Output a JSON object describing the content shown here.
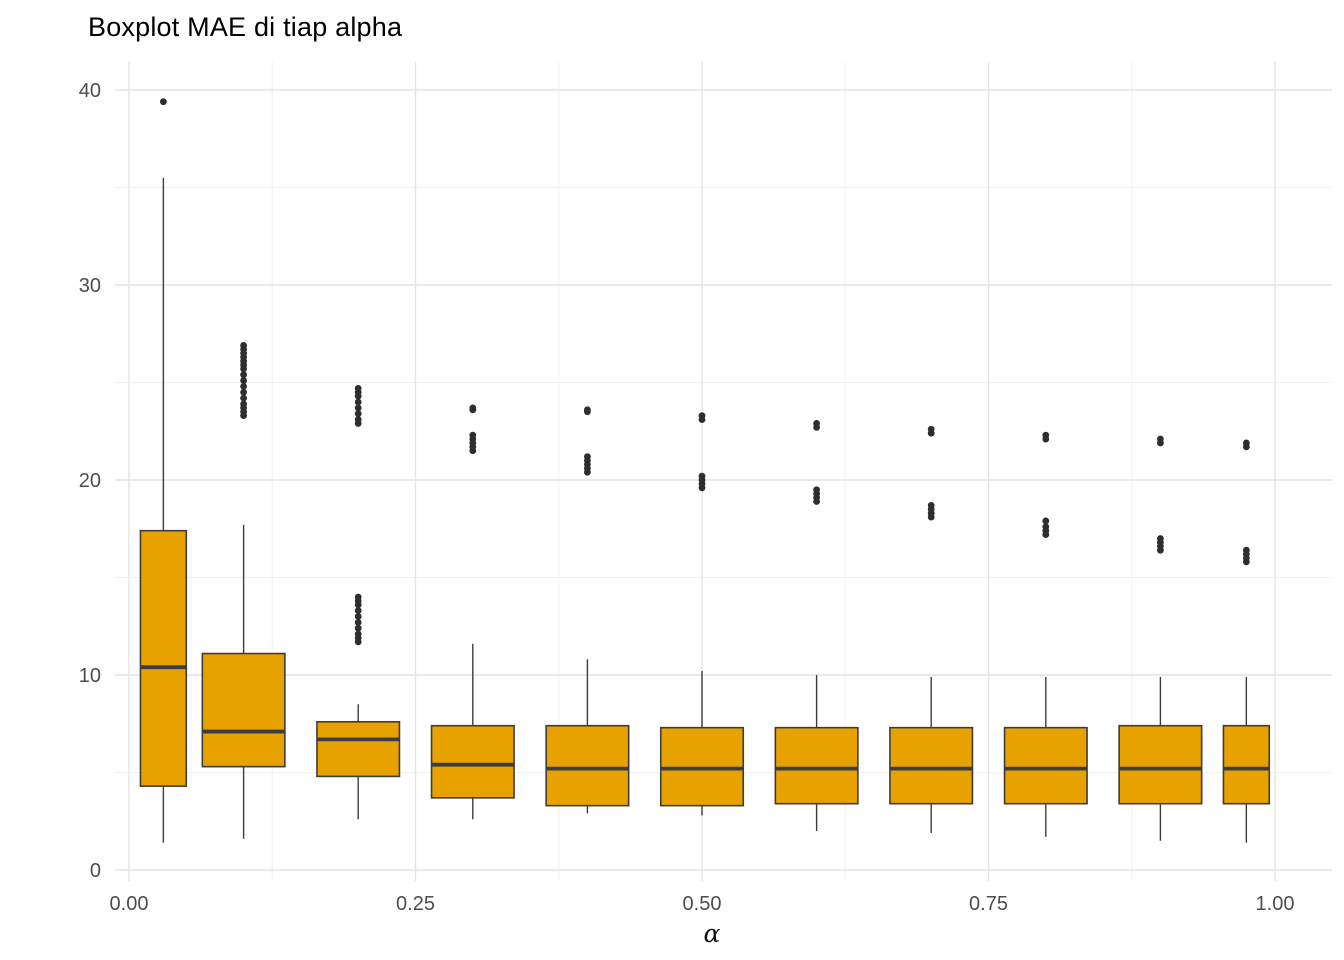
{
  "page": {
    "background": "#FFFFFF"
  },
  "chart_data": {
    "type": "boxplot",
    "title": "Boxplot MAE di tiap alpha",
    "xlabel": "α",
    "ylabel": "",
    "grid": true,
    "legend": "none",
    "x_axis": {
      "ticks": [
        0.0,
        0.25,
        0.5,
        0.75,
        1.0
      ],
      "labels": [
        "0.00",
        "0.25",
        "0.50",
        "0.75",
        "1.00"
      ],
      "minor_ticks": [
        0.125,
        0.375,
        0.625,
        0.875
      ],
      "range": [
        -0.012,
        1.05
      ]
    },
    "y_axis": {
      "ticks": [
        0,
        10,
        20,
        30,
        40
      ],
      "labels": [
        "0",
        "10",
        "20",
        "30",
        "40"
      ],
      "minor_ticks": [
        5,
        15,
        25,
        35
      ],
      "range": [
        0,
        41.5
      ]
    },
    "colors": {
      "box_fill": "#E8A200",
      "box_stroke": "#3C3C3C",
      "median": "#3C3C3C",
      "outlier": "#2E2E2E",
      "grid_major": "#E4E4E4",
      "grid_minor": "#F0F0F0",
      "axis_text": "#4D4D4D",
      "title_text": "#000000"
    },
    "boxes": [
      {
        "alpha": 0.03,
        "width": 0.04,
        "whisker_low": 1.4,
        "q1": 4.3,
        "median": 10.4,
        "q3": 17.4,
        "whisker_high": 35.5,
        "outliers": [
          39.4
        ]
      },
      {
        "alpha": 0.1,
        "width": 0.072,
        "whisker_low": 1.6,
        "q1": 5.3,
        "median": 7.1,
        "q3": 11.1,
        "whisker_high": 17.7,
        "outliers": [
          23.3,
          23.5,
          23.7,
          23.9,
          24.2,
          24.5,
          24.8,
          25.1,
          25.4,
          25.7,
          25.9,
          26.1,
          26.3,
          26.5,
          26.7,
          26.9
        ]
      },
      {
        "alpha": 0.2,
        "width": 0.072,
        "whisker_low": 2.6,
        "q1": 4.8,
        "median": 6.7,
        "q3": 7.6,
        "whisker_high": 8.5,
        "outliers": [
          11.7,
          11.9,
          12.1,
          12.4,
          12.7,
          13.0,
          13.3,
          13.6,
          13.8,
          14.0,
          22.9,
          23.1,
          23.4,
          23.7,
          24.0,
          24.3,
          24.5,
          24.7
        ]
      },
      {
        "alpha": 0.3,
        "width": 0.072,
        "whisker_low": 2.6,
        "q1": 3.7,
        "median": 5.4,
        "q3": 7.4,
        "whisker_high": 11.6,
        "outliers": [
          21.5,
          21.7,
          21.9,
          22.1,
          22.3,
          23.6,
          23.7
        ]
      },
      {
        "alpha": 0.4,
        "width": 0.072,
        "whisker_low": 2.9,
        "q1": 3.3,
        "median": 5.2,
        "q3": 7.4,
        "whisker_high": 10.8,
        "outliers": [
          20.4,
          20.6,
          20.8,
          21.0,
          21.2,
          23.5,
          23.6
        ]
      },
      {
        "alpha": 0.5,
        "width": 0.072,
        "whisker_low": 2.8,
        "q1": 3.3,
        "median": 5.2,
        "q3": 7.3,
        "whisker_high": 10.2,
        "outliers": [
          19.6,
          19.8,
          20.0,
          20.2,
          23.1,
          23.3
        ]
      },
      {
        "alpha": 0.6,
        "width": 0.072,
        "whisker_low": 2.0,
        "q1": 3.4,
        "median": 5.2,
        "q3": 7.3,
        "whisker_high": 10.0,
        "outliers": [
          18.9,
          19.1,
          19.3,
          19.5,
          22.7,
          22.9
        ]
      },
      {
        "alpha": 0.7,
        "width": 0.072,
        "whisker_low": 1.9,
        "q1": 3.4,
        "median": 5.2,
        "q3": 7.3,
        "whisker_high": 9.9,
        "outliers": [
          18.1,
          18.3,
          18.5,
          18.7,
          22.4,
          22.6
        ]
      },
      {
        "alpha": 0.8,
        "width": 0.072,
        "whisker_low": 1.7,
        "q1": 3.4,
        "median": 5.2,
        "q3": 7.3,
        "whisker_high": 9.9,
        "outliers": [
          17.2,
          17.4,
          17.6,
          17.9,
          22.1,
          22.3
        ]
      },
      {
        "alpha": 0.9,
        "width": 0.072,
        "whisker_low": 1.5,
        "q1": 3.4,
        "median": 5.2,
        "q3": 7.4,
        "whisker_high": 9.9,
        "outliers": [
          16.4,
          16.6,
          16.8,
          17.0,
          21.9,
          22.1
        ]
      },
      {
        "alpha": 0.975,
        "width": 0.04,
        "whisker_low": 1.4,
        "q1": 3.4,
        "median": 5.2,
        "q3": 7.4,
        "whisker_high": 9.9,
        "outliers": [
          15.8,
          16.0,
          16.2,
          16.4,
          21.7,
          21.9
        ]
      }
    ]
  }
}
